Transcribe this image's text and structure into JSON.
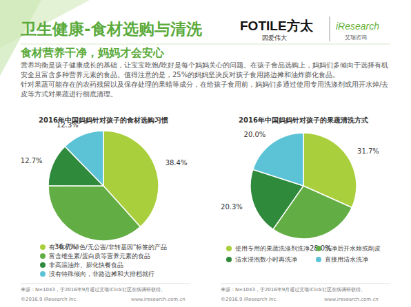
{
  "header": {
    "title": "卫生健康-食材选购与清洗",
    "subtitle": "食材营养干净，妈妈才会安心",
    "paragraphs": [
      "营养均衡是孩子健康成长的基础，让宝宝吃饱/吃好是每个妈妈关心的问题。在孩子食品选购上，妈妈们多倾向于选择有机安全且富含多种营养元素的食品。值得注意的是，25%的妈妈坚决反对孩子食用路边摊和油炸膨化食品。",
      "针对果蔬可能存在的农药残留以及保存处理的果蜡等成分，在给孩子食用前，妈妈们多通过使用专用洗涤剂或用开水焯/去皮等方式对果蔬进行彻底清理。"
    ],
    "brand": {
      "fotile": "FOTILE方太",
      "fotile_slogan": "因爱伟大",
      "iresearch": "iResearch",
      "iresearch_cn": "艾瑞咨询"
    }
  },
  "chart_data": [
    {
      "type": "pie",
      "title": "2016年中国妈妈针对孩子的食材选购习惯",
      "categories": [
        "有“有机/绿色/无公害/非转基因”标签的产品",
        "富含维生素/蛋白质等营养元素的食品",
        "非高温油炸、膨化快餐食品",
        "没有特殊倾向，非路边摊和大排档就行"
      ],
      "values": [
        38.4,
        36.7,
        12.7,
        12.3
      ],
      "value_labels": [
        "38.4%",
        "36.7%",
        "12.7%",
        "12.3%"
      ],
      "colors": [
        "#a9cf3c",
        "#63ad45",
        "#2f8a3c",
        "#5cc3d6"
      ],
      "data_labels": true,
      "legend": "bottom"
    },
    {
      "type": "pie",
      "title": "2016年中国妈妈针对孩子的果蔬清洗方式",
      "categories": [
        "使用专用的果蔬洗涤剂洗净",
        "洗净后开水焯或削皮",
        "清水浸泡数小时再洗净",
        "直接用清水洗净"
      ],
      "values": [
        31.7,
        28.0,
        20.3,
        20.0
      ],
      "value_labels": [
        "31.7%",
        "28.0%",
        "20.3%",
        "20.0%"
      ],
      "colors": [
        "#a9cf3c",
        "#63ad45",
        "#2f8a3c",
        "#5cc3d6"
      ],
      "data_labels": true,
      "legend": "bottom"
    }
  ],
  "footer": {
    "left": {
      "source": "来源：N=1043，于2016年9月通过艾瑞iClick社区在线调研获得。",
      "copyright": "©2016.9 iResearch Inc.",
      "website": "www.iresearch.com.cn"
    },
    "right": {
      "source": "来源：N=1043，于2016年9月通过艾瑞iClick社区在线调研获得。",
      "copyright": "©2016.9 iResearch Inc.",
      "website": "www.iresearch.com.cn"
    }
  }
}
